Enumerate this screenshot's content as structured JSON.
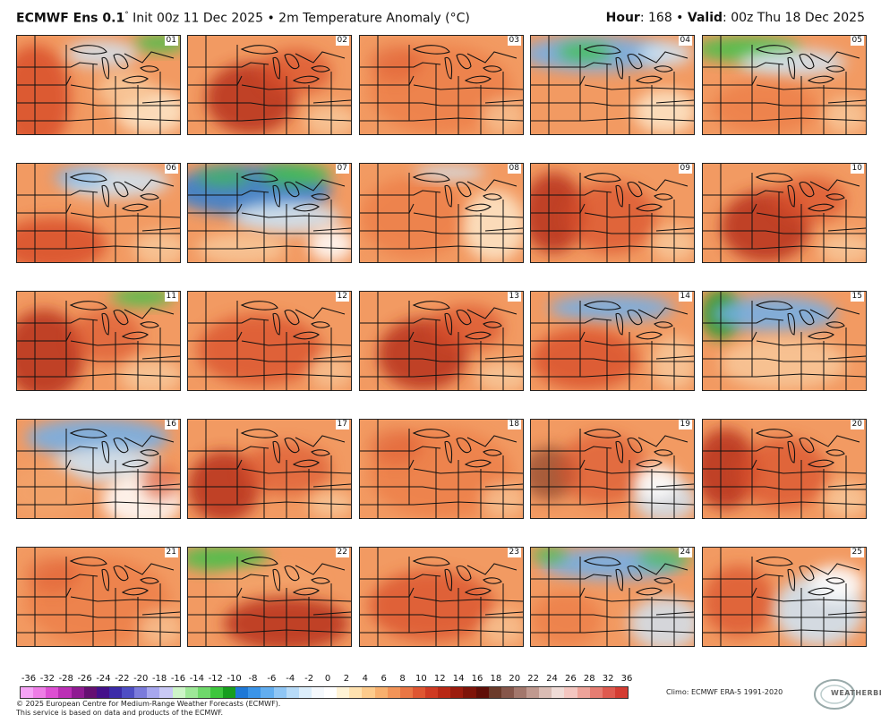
{
  "header": {
    "model": "ECMWF Ens 0.1",
    "degree": "°",
    "init": " Init 00z 11 Dec 2025 • 2m Temperature Anomaly (°C)",
    "hour_label": "Hour",
    "hour_value": ": 168 • ",
    "valid_label": "Valid",
    "valid_value": ": 00z Thu 18 Dec 2025"
  },
  "members": [
    {
      "id": "01",
      "pattern": "warm-west-cool-se-green-ne"
    },
    {
      "id": "06",
      "pattern": "warm-south-blue-north"
    },
    {
      "id": "11",
      "pattern": "very-warm-west-green-ne"
    },
    {
      "id": "16",
      "pattern": "cool-blue-north-light"
    },
    {
      "id": "21",
      "pattern": "warm-uniform"
    },
    {
      "id": "02",
      "pattern": "very-warm-central"
    },
    {
      "id": "07",
      "pattern": "cold-blue-north-green"
    },
    {
      "id": "12",
      "pattern": "warm-uniform-dark"
    },
    {
      "id": "17",
      "pattern": "warm-central-dark"
    },
    {
      "id": "22",
      "pattern": "warm-green-nw"
    },
    {
      "id": "03",
      "pattern": "warm-uniform"
    },
    {
      "id": "08",
      "pattern": "warm-light-east"
    },
    {
      "id": "13",
      "pattern": "very-warm-central"
    },
    {
      "id": "18",
      "pattern": "warm-uniform"
    },
    {
      "id": "23",
      "pattern": "warm-uniform-dark"
    },
    {
      "id": "04",
      "pattern": "blue-green-north"
    },
    {
      "id": "09",
      "pattern": "very-warm-west"
    },
    {
      "id": "14",
      "pattern": "warm-blue-north"
    },
    {
      "id": "19",
      "pattern": "warm-light-se"
    },
    {
      "id": "24",
      "pattern": "blue-north-light-se"
    },
    {
      "id": "05",
      "pattern": "green-blue-north"
    },
    {
      "id": "10",
      "pattern": "very-warm-central"
    },
    {
      "id": "15",
      "pattern": "blue-green-north-west"
    },
    {
      "id": "20",
      "pattern": "very-warm-west"
    },
    {
      "id": "25",
      "pattern": "cool-east-light"
    }
  ],
  "legend": {
    "labels": [
      "-36",
      "-32",
      "-28",
      "-26",
      "-24",
      "-22",
      "-20",
      "-18",
      "-16",
      "-14",
      "-12",
      "-10",
      "-8",
      "-6",
      "-4",
      "-2",
      "0",
      "2",
      "4",
      "6",
      "8",
      "10",
      "12",
      "14",
      "16",
      "18",
      "20",
      "22",
      "24",
      "26",
      "28",
      "32",
      "36"
    ],
    "colors": [
      "#f5a3f5",
      "#ee7de6",
      "#dd4fd3",
      "#bb2fb5",
      "#8f1b92",
      "#651072",
      "#44118a",
      "#3b2ba8",
      "#4e4ec4",
      "#7b7bdc",
      "#a7a7ee",
      "#c9c9f6",
      "#cdf5c8",
      "#9ee898",
      "#6fd86b",
      "#3dc63d",
      "#169e1e",
      "#1e78d6",
      "#3a94e8",
      "#62aef0",
      "#8fc6f5",
      "#b7dbf8",
      "#dceefb",
      "#f5f9fd",
      "#ffffff",
      "#fff3d6",
      "#ffe2b0",
      "#fdcb8c",
      "#f8b06e",
      "#f29458",
      "#ea7644",
      "#df5631",
      "#cf3a22",
      "#b82815",
      "#9c1c0e",
      "#7e1409",
      "#5f0e07",
      "#6b3a2a",
      "#86564a",
      "#a3776c",
      "#c0998f",
      "#dabcb4",
      "#f0dcd7",
      "#f4c6c0",
      "#eea39a",
      "#e67d72",
      "#de5a4f",
      "#d43c32"
    ],
    "climo": "Climo: ECMWF ERA-5 1991-2020"
  },
  "footer": {
    "line1": "© 2025 European Centre for Medium-Range Weather Forecasts (ECMWF).",
    "line2": "This service is based on data and products of the ECMWF."
  },
  "logo": {
    "text": "WEATHERBELL"
  }
}
